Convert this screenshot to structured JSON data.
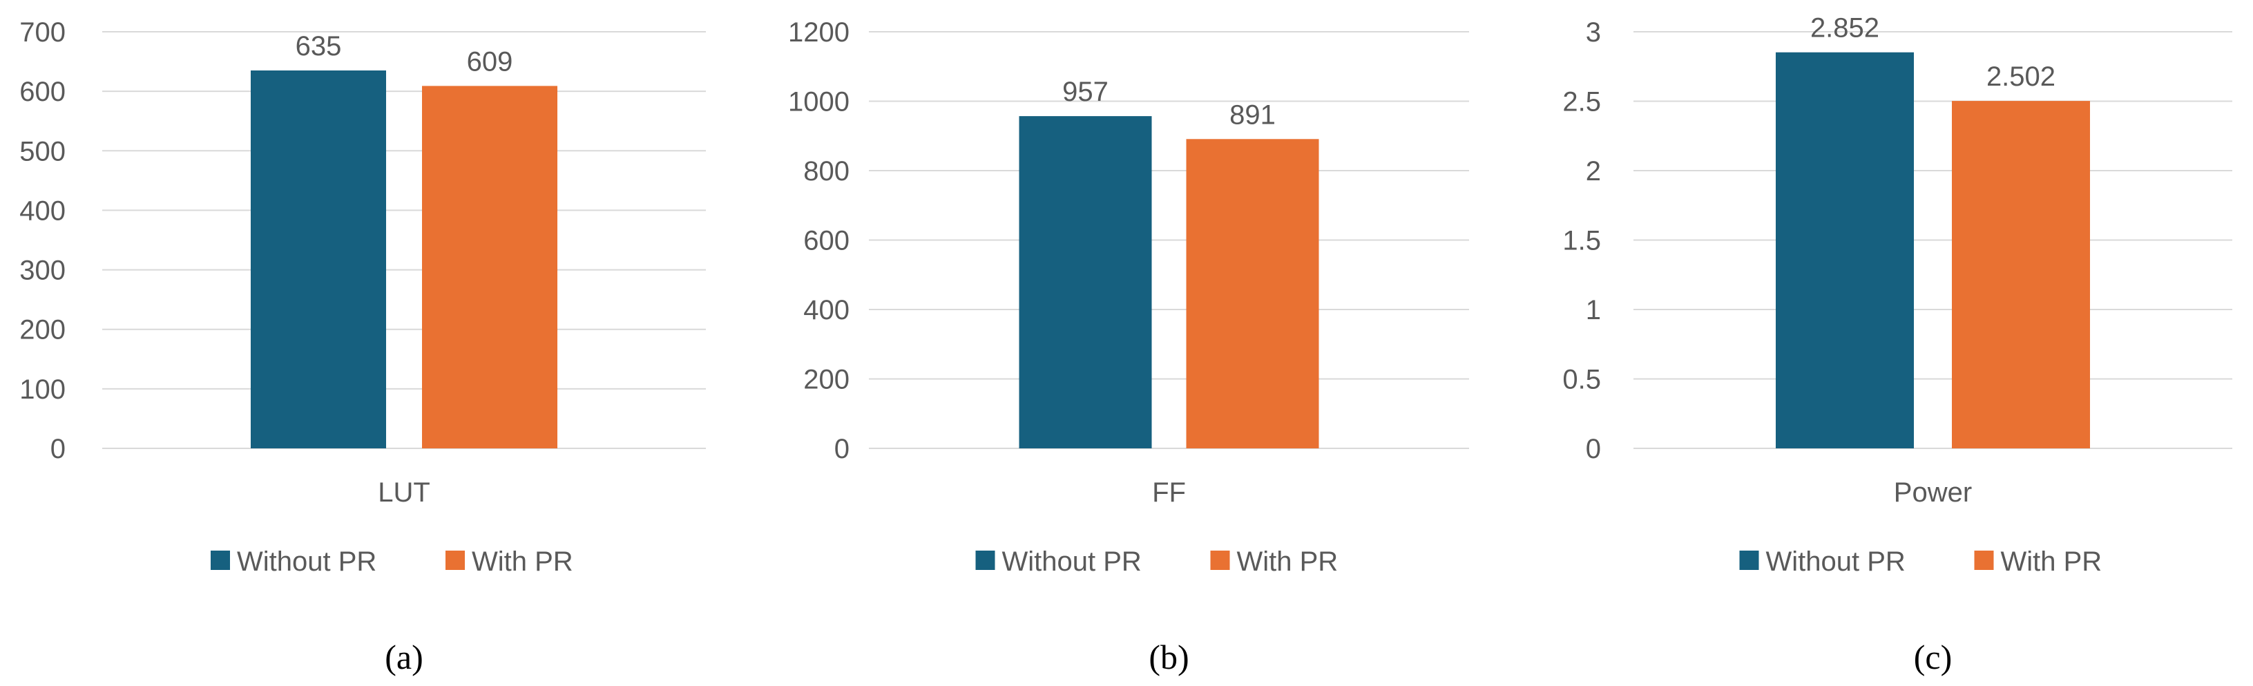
{
  "series_colors": {
    "without": "#16607f",
    "with": "#e97132"
  },
  "gridline_color": "#d9d9d9",
  "chart_data": [
    {
      "type": "bar",
      "caption": "(a)",
      "categories": [
        "LUT"
      ],
      "series": [
        {
          "name": "Without PR",
          "values": [
            635
          ]
        },
        {
          "name": "With PR",
          "values": [
            609
          ]
        }
      ],
      "data_labels": [
        "635",
        "609"
      ],
      "yticks": [
        "0",
        "100",
        "200",
        "300",
        "400",
        "500",
        "600",
        "700"
      ],
      "ylim": [
        0,
        700
      ],
      "grid": true,
      "legend": "bottom"
    },
    {
      "type": "bar",
      "caption": "(b)",
      "categories": [
        "FF"
      ],
      "series": [
        {
          "name": "Without PR",
          "values": [
            957
          ]
        },
        {
          "name": "With PR",
          "values": [
            891
          ]
        }
      ],
      "data_labels": [
        "957",
        "891"
      ],
      "yticks": [
        "0",
        "200",
        "400",
        "600",
        "800",
        "1000",
        "1200"
      ],
      "ylim": [
        0,
        1200
      ],
      "grid": true,
      "legend": "bottom"
    },
    {
      "type": "bar",
      "caption": "(c)",
      "categories": [
        "Power"
      ],
      "series": [
        {
          "name": "Without PR",
          "values": [
            2.852
          ]
        },
        {
          "name": "With PR",
          "values": [
            2.502
          ]
        }
      ],
      "data_labels": [
        "2.852",
        "2.502"
      ],
      "yticks": [
        "0",
        "0.5",
        "1",
        "1.5",
        "2",
        "2.5",
        "3"
      ],
      "ylim": [
        0,
        3
      ],
      "grid": true,
      "legend": "bottom"
    }
  ]
}
